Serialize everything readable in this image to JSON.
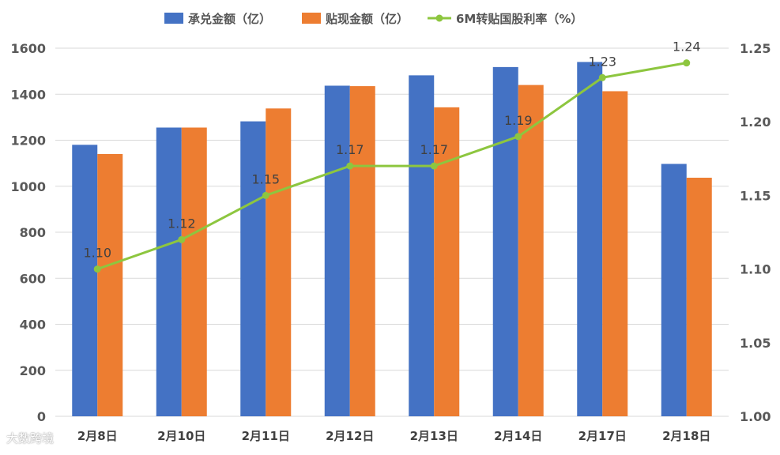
{
  "chart_data": {
    "type": "bar+line",
    "categories": [
      "2月8日",
      "2月10日",
      "2月11日",
      "2月12日",
      "2月13日",
      "2月14日",
      "2月17日",
      "2月18日"
    ],
    "series": [
      {
        "name": "承兑金额（亿）",
        "type": "bar",
        "axis": "left",
        "color": "#4472C4",
        "values": [
          1180,
          1255,
          1282,
          1437,
          1482,
          1518,
          1540,
          1097
        ]
      },
      {
        "name": "贴现金额（亿）",
        "type": "bar",
        "axis": "left",
        "color": "#ED7D31",
        "values": [
          1140,
          1255,
          1338,
          1435,
          1343,
          1440,
          1413,
          1037
        ]
      },
      {
        "name": "6M转贴国股利率（%）",
        "type": "line",
        "axis": "right",
        "color": "#8DC63F",
        "values": [
          1.1,
          1.12,
          1.15,
          1.17,
          1.17,
          1.19,
          1.23,
          1.24
        ],
        "labels": [
          "1.10",
          "1.12",
          "1.15",
          "1.17",
          "1.17",
          "1.19",
          "1.23",
          "1.24"
        ]
      }
    ],
    "y_left": {
      "min": 0,
      "max": 1600,
      "step": 200,
      "ticks": [
        "0",
        "200",
        "400",
        "600",
        "800",
        "1000",
        "1200",
        "1400",
        "1600"
      ]
    },
    "y_right": {
      "min": 1.0,
      "max": 1.25,
      "step": 0.05,
      "ticks": [
        "1.00",
        "1.05",
        "1.10",
        "1.15",
        "1.20",
        "1.25"
      ]
    },
    "grid": true,
    "legend_position": "top"
  },
  "watermark": "大数跨境"
}
